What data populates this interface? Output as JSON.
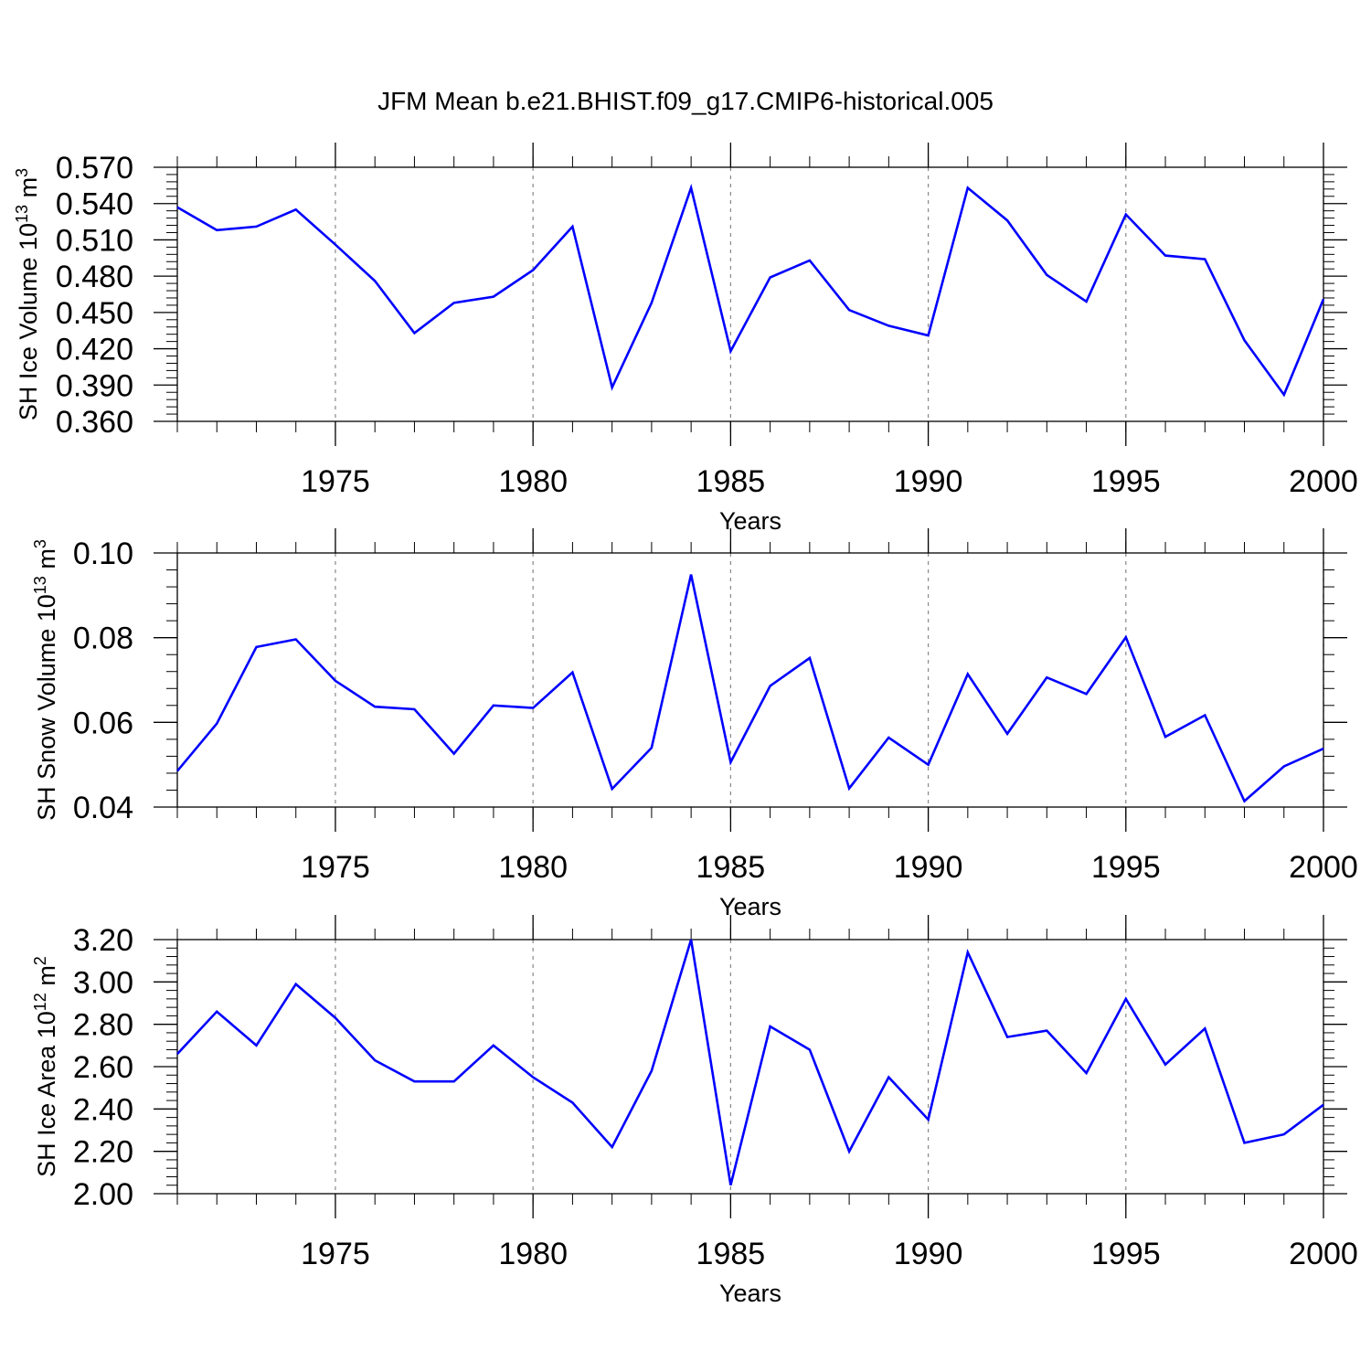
{
  "title": "JFM Mean b.e21.BHIST.f09_g17.CMIP6-historical.005",
  "line_color": "#0000ff",
  "chart_data": [
    {
      "type": "line",
      "ylabel": "SH Ice Volume 10",
      "ylabel_exp": "13",
      "ylabel_unit": " m",
      "ylabel_unit_exp": "3",
      "xlabel": "Years",
      "xlim": [
        1971,
        2000
      ],
      "ylim": [
        0.36,
        0.57
      ],
      "xticks": [
        "1975",
        "1980",
        "1985",
        "1990",
        "1995",
        "2000"
      ],
      "yticks": [
        "0.360",
        "0.390",
        "0.420",
        "0.450",
        "0.480",
        "0.510",
        "0.540",
        "0.570"
      ],
      "grid": "vertical dashed at major x ticks",
      "x": [
        1971,
        1972,
        1973,
        1974,
        1975,
        1976,
        1977,
        1978,
        1979,
        1980,
        1981,
        1982,
        1983,
        1984,
        1985,
        1986,
        1987,
        1988,
        1989,
        1990,
        1991,
        1992,
        1993,
        1994,
        1995,
        1996,
        1997,
        1998,
        1999,
        2000
      ],
      "values": [
        0.537,
        0.518,
        0.521,
        0.535,
        0.506,
        0.476,
        0.433,
        0.458,
        0.463,
        0.485,
        0.521,
        0.388,
        0.458,
        0.553,
        0.418,
        0.479,
        0.493,
        0.452,
        0.439,
        0.431,
        0.553,
        0.526,
        0.481,
        0.459,
        0.531,
        0.497,
        0.494,
        0.427,
        0.382,
        0.461
      ]
    },
    {
      "type": "line",
      "ylabel": "SH Snow Volume 10",
      "ylabel_exp": "13",
      "ylabel_unit": " m",
      "ylabel_unit_exp": "3",
      "xlabel": "Years",
      "xlim": [
        1971,
        2000
      ],
      "ylim": [
        0.04,
        0.1
      ],
      "xticks": [
        "1975",
        "1980",
        "1985",
        "1990",
        "1995",
        "2000"
      ],
      "yticks": [
        "0.04",
        "0.06",
        "0.08",
        "0.10"
      ],
      "grid": "vertical dashed at major x ticks",
      "x": [
        1971,
        1972,
        1973,
        1974,
        1975,
        1976,
        1977,
        1978,
        1979,
        1980,
        1981,
        1982,
        1983,
        1984,
        1985,
        1986,
        1987,
        1988,
        1989,
        1990,
        1991,
        1992,
        1993,
        1994,
        1995,
        1996,
        1997,
        1998,
        1999,
        2000
      ],
      "values": [
        0.0485,
        0.0597,
        0.0778,
        0.0796,
        0.0698,
        0.0637,
        0.0631,
        0.0526,
        0.064,
        0.0634,
        0.0718,
        0.0443,
        0.054,
        0.0949,
        0.0506,
        0.0686,
        0.0752,
        0.0444,
        0.0564,
        0.05,
        0.0714,
        0.0573,
        0.0706,
        0.0667,
        0.0801,
        0.0566,
        0.0617,
        0.0414,
        0.0496,
        0.0538
      ]
    },
    {
      "type": "line",
      "ylabel": "SH Ice Area 10",
      "ylabel_exp": "12",
      "ylabel_unit": " m",
      "ylabel_unit_exp": "2",
      "xlabel": "Years",
      "xlim": [
        1971,
        2000
      ],
      "ylim": [
        2.0,
        3.2
      ],
      "xticks": [
        "1975",
        "1980",
        "1985",
        "1990",
        "1995",
        "2000"
      ],
      "yticks": [
        "2.00",
        "2.20",
        "2.40",
        "2.60",
        "2.80",
        "3.00",
        "3.20"
      ],
      "grid": "vertical dashed at major x ticks",
      "x": [
        1971,
        1972,
        1973,
        1974,
        1975,
        1976,
        1977,
        1978,
        1979,
        1980,
        1981,
        1982,
        1983,
        1984,
        1985,
        1986,
        1987,
        1988,
        1989,
        1990,
        1991,
        1992,
        1993,
        1994,
        1995,
        1996,
        1997,
        1998,
        1999,
        2000
      ],
      "values": [
        2.66,
        2.86,
        2.7,
        2.99,
        2.83,
        2.63,
        2.53,
        2.53,
        2.7,
        2.55,
        2.43,
        2.22,
        2.58,
        3.2,
        2.04,
        2.79,
        2.68,
        2.2,
        2.55,
        2.35,
        3.14,
        2.74,
        2.77,
        2.57,
        2.92,
        2.61,
        2.78,
        2.24,
        2.28,
        2.42
      ]
    }
  ]
}
